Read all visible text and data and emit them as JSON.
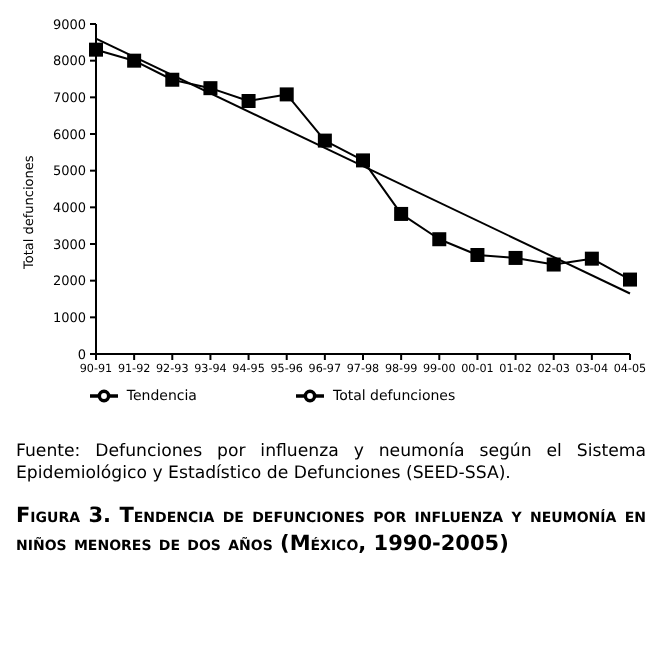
{
  "chart_data": {
    "type": "line",
    "title": "Figura 3. Tendencia de defunciones por influenza y neumonía en niños menores de dos años (México, 1990-2005)",
    "ylabel": "Total defunciones",
    "categories": [
      "90-91",
      "91-92",
      "92-93",
      "93-94",
      "94-95",
      "95-96",
      "96-97",
      "97-98",
      "98-99",
      "99-00",
      "00-01",
      "01-02",
      "02-03",
      "03-04",
      "04-05"
    ],
    "series": [
      {
        "name": "Total defunciones",
        "color": "#000000",
        "marker": "square",
        "values": [
          8300,
          8000,
          7480,
          7250,
          6900,
          7080,
          5820,
          5280,
          3820,
          3130,
          2700,
          2620,
          2440,
          2600,
          2030
        ]
      },
      {
        "name": "Tendencia",
        "color": "#000000",
        "marker": "none",
        "values": [
          8600,
          null,
          null,
          null,
          null,
          null,
          null,
          null,
          null,
          null,
          null,
          null,
          null,
          null,
          1650
        ]
      }
    ],
    "ylim": [
      0,
      9000
    ],
    "yticks": [
      0,
      1000,
      2000,
      3000,
      4000,
      5000,
      6000,
      7000,
      8000,
      9000
    ],
    "grid": false,
    "legend": "bottom",
    "annotations": [
      "Fuente: Defunciones por influenza y neumonía según el Sistema Epidemiológico y Estadístico de Defunciones (SEED-SSA)."
    ]
  }
}
